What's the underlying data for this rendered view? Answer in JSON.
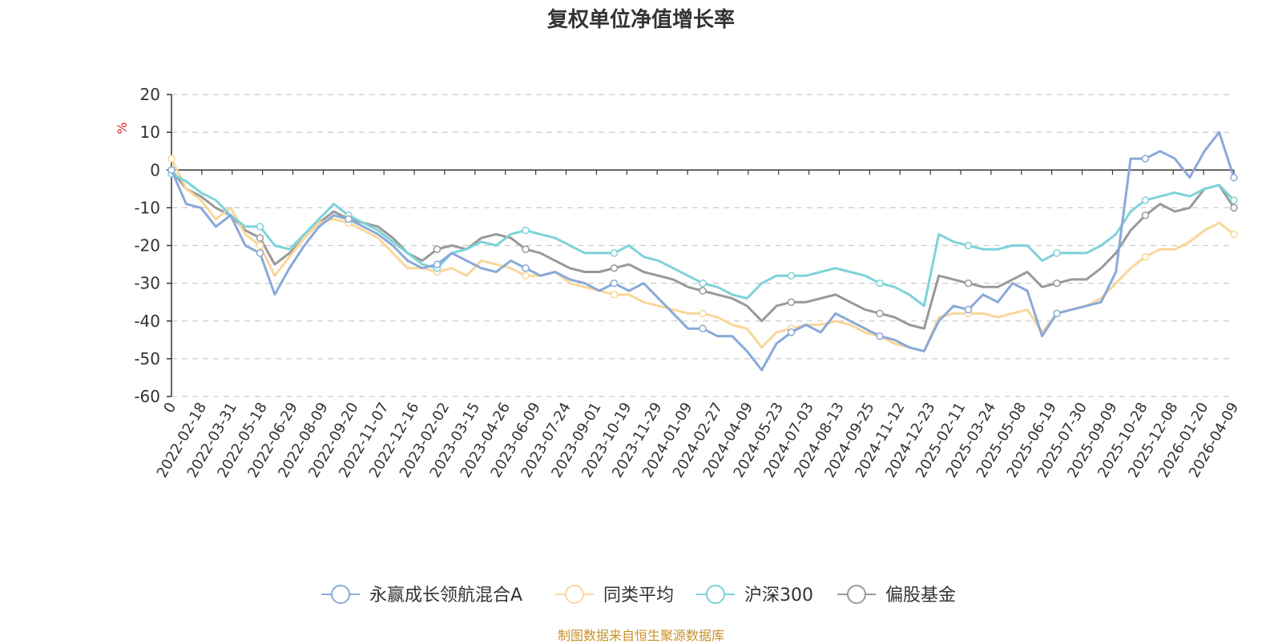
{
  "title": "复权单位净值增长率",
  "footer": "制图数据来自恒生聚源数据库",
  "chart_data": {
    "type": "line",
    "title": "复权单位净值增长率",
    "ylabel": "%",
    "xlabel": "",
    "ylim": [
      -60,
      20
    ],
    "yticks": [
      20,
      10,
      0,
      -10,
      -20,
      -30,
      -40,
      -50,
      -60
    ],
    "grid": true,
    "legend_position": "bottom-center",
    "x_tick_labels": [
      "0",
      "2022-02-18",
      "2022-03-31",
      "2022-05-18",
      "2022-06-29",
      "2022-08-09",
      "2022-09-20",
      "2022-11-07",
      "2022-12-16",
      "2023-02-02",
      "2023-03-15",
      "2023-04-26",
      "2023-06-09",
      "2023-07-24",
      "2023-09-01",
      "2023-10-19",
      "2023-11-29",
      "2024-01-09",
      "2024-02-27",
      "2024-04-09",
      "2024-05-23",
      "2024-07-03",
      "2024-08-13",
      "2024-09-25",
      "2024-11-12",
      "2024-12-23",
      "2025-02-11",
      "2025-03-24",
      "2025-05-08",
      "2025-06-19",
      "2025-07-30",
      "2025-09-09",
      "2025-10-28",
      "2025-12-08",
      "2026-01-20",
      "2026-04-09"
    ],
    "x_index": [
      0,
      1,
      2,
      3,
      4,
      5,
      6,
      7,
      8,
      9,
      10,
      11,
      12,
      13,
      14,
      15,
      16,
      17,
      18,
      19,
      20,
      21,
      22,
      23,
      24,
      25,
      26,
      27,
      28,
      29,
      30,
      31,
      32,
      33,
      34,
      35,
      36,
      37,
      38,
      39,
      40,
      41,
      42,
      43,
      44,
      45,
      46,
      47,
      48,
      49,
      50,
      51,
      52,
      53,
      54,
      55,
      56,
      57,
      58,
      59,
      60,
      61,
      62,
      63,
      64,
      65,
      66,
      67,
      68,
      69,
      70,
      71,
      72
    ],
    "series": [
      {
        "name": "永赢成长领航混合A",
        "color": "#8aa9d9",
        "values": [
          0,
          -9,
          -10,
          -15,
          -12,
          -20,
          -22,
          -33,
          -26,
          -20,
          -15,
          -12,
          -13,
          -15,
          -17,
          -20,
          -24,
          -26,
          -25,
          -22,
          -24,
          -26,
          -27,
          -24,
          -26,
          -28,
          -27,
          -29,
          -30,
          -32,
          -30,
          -32,
          -30,
          -34,
          -38,
          -42,
          -42,
          -44,
          -44,
          -48,
          -53,
          -46,
          -43,
          -41,
          -43,
          -38,
          -40,
          -42,
          -44,
          -45,
          -47,
          -48,
          -40,
          -36,
          -37,
          -33,
          -35,
          -30,
          -32,
          -44,
          -38,
          -37,
          -36,
          -35,
          -27,
          3,
          3,
          5,
          3,
          -2,
          5,
          10,
          -2
        ]
      },
      {
        "name": "同类平均",
        "color": "#f9d79a",
        "values": [
          3,
          -5,
          -8,
          -13,
          -10,
          -17,
          -20,
          -28,
          -23,
          -18,
          -14,
          -13,
          -14,
          -16,
          -18,
          -22,
          -26,
          -26,
          -27,
          -26,
          -28,
          -24,
          -25,
          -26,
          -28,
          -28,
          -27,
          -30,
          -31,
          -32,
          -33,
          -33,
          -35,
          -36,
          -37,
          -38,
          -38,
          -39,
          -41,
          -42,
          -47,
          -43,
          -42,
          -41,
          -41,
          -40,
          -41,
          -43,
          -44,
          -46,
          -47,
          -48,
          -39,
          -38,
          -38,
          -38,
          -39,
          -38,
          -37,
          -43,
          -38,
          -37,
          -36,
          -34,
          -30,
          -26,
          -23,
          -21,
          -21,
          -19,
          -16,
          -14,
          -17
        ]
      },
      {
        "name": "沪深300",
        "color": "#7dd3d8",
        "values": [
          -1,
          -3,
          -6,
          -8,
          -12,
          -15,
          -15,
          -20,
          -21,
          -17,
          -13,
          -9,
          -12,
          -14,
          -16,
          -19,
          -22,
          -25,
          -26,
          -22,
          -21,
          -19,
          -20,
          -17,
          -16,
          -17,
          -18,
          -20,
          -22,
          -22,
          -22,
          -20,
          -23,
          -24,
          -26,
          -28,
          -30,
          -31,
          -33,
          -34,
          -30,
          -28,
          -28,
          -28,
          -27,
          -26,
          -27,
          -28,
          -30,
          -31,
          -33,
          -36,
          -17,
          -19,
          -20,
          -21,
          -21,
          -20,
          -20,
          -24,
          -22,
          -22,
          -22,
          -20,
          -17,
          -11,
          -8,
          -7,
          -6,
          -7,
          -5,
          -4,
          -8
        ]
      },
      {
        "name": "偏股基金",
        "color": "#999999",
        "values": [
          0,
          -5,
          -7,
          -10,
          -12,
          -16,
          -18,
          -25,
          -22,
          -18,
          -14,
          -11,
          -13,
          -14,
          -15,
          -18,
          -22,
          -24,
          -21,
          -20,
          -21,
          -18,
          -17,
          -18,
          -21,
          -22,
          -24,
          -26,
          -27,
          -27,
          -26,
          -25,
          -27,
          -28,
          -29,
          -31,
          -32,
          -33,
          -34,
          -36,
          -40,
          -36,
          -35,
          -35,
          -34,
          -33,
          -35,
          -37,
          -38,
          -39,
          -41,
          -42,
          -28,
          -29,
          -30,
          -31,
          -31,
          -29,
          -27,
          -31,
          -30,
          -29,
          -29,
          -26,
          -22,
          -16,
          -12,
          -9,
          -11,
          -10,
          -5,
          -4,
          -10
        ]
      }
    ]
  }
}
